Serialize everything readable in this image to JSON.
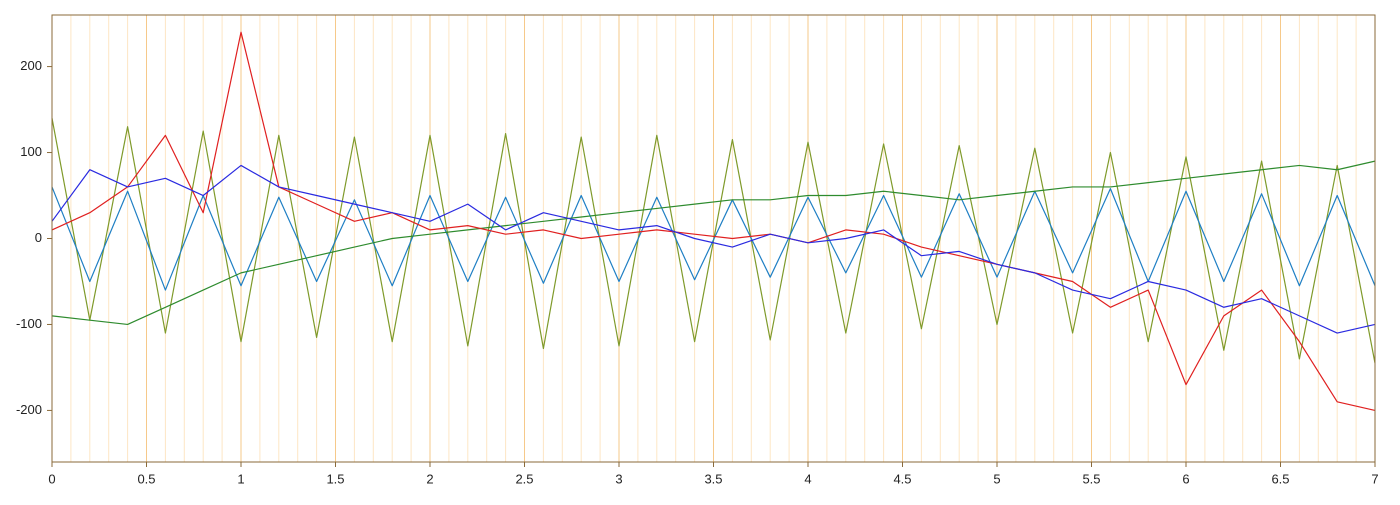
{
  "chart_data": {
    "type": "line",
    "x": [
      0,
      0.2,
      0.4,
      0.6,
      0.8,
      1,
      1.2,
      1.4,
      1.6,
      1.8,
      2,
      2.2,
      2.4,
      2.6,
      2.8,
      3,
      3.2,
      3.4,
      3.6,
      3.8,
      4,
      4.2,
      4.4,
      4.6,
      4.8,
      5,
      5.2,
      5.4,
      5.6,
      5.8,
      6,
      6.2,
      6.4,
      6.6,
      6.8,
      7
    ],
    "series": [
      {
        "color": "#7f9a2a",
        "values": [
          140,
          -95,
          130,
          -110,
          125,
          -120,
          120,
          -115,
          118,
          -120,
          120,
          -125,
          122,
          -128,
          118,
          -125,
          120,
          -120,
          115,
          -118,
          112,
          -110,
          110,
          -105,
          108,
          -100,
          105,
          -110,
          100,
          -120,
          95,
          -130,
          90,
          -140,
          85,
          -145
        ]
      },
      {
        "color": "#1f7fc4",
        "values": [
          60,
          -50,
          55,
          -60,
          50,
          -55,
          48,
          -50,
          45,
          -55,
          50,
          -50,
          48,
          -52,
          50,
          -50,
          48,
          -48,
          45,
          -45,
          48,
          -40,
          50,
          -45,
          52,
          -45,
          55,
          -40,
          58,
          -50,
          55,
          -50,
          52,
          -55,
          50,
          -55
        ]
      },
      {
        "color": "#2e8b2e",
        "values": [
          -90,
          -95,
          -100,
          -80,
          -60,
          -40,
          -30,
          -20,
          -10,
          0,
          5,
          10,
          15,
          20,
          25,
          30,
          35,
          40,
          45,
          45,
          50,
          50,
          55,
          50,
          45,
          50,
          55,
          60,
          60,
          65,
          70,
          75,
          80,
          85,
          80,
          90
        ]
      },
      {
        "color": "#e02020",
        "values": [
          10,
          30,
          60,
          120,
          30,
          240,
          60,
          40,
          20,
          30,
          10,
          15,
          5,
          10,
          0,
          5,
          10,
          5,
          0,
          5,
          -5,
          10,
          5,
          -10,
          -20,
          -30,
          -40,
          -50,
          -80,
          -60,
          -170,
          -90,
          -60,
          -120,
          -190,
          -200
        ]
      },
      {
        "color": "#2a2ae0",
        "values": [
          20,
          80,
          60,
          70,
          50,
          85,
          60,
          50,
          40,
          30,
          20,
          40,
          10,
          30,
          20,
          10,
          15,
          0,
          -10,
          5,
          -5,
          0,
          10,
          -20,
          -15,
          -30,
          -40,
          -60,
          -70,
          -50,
          -60,
          -80,
          -70,
          -90,
          -110,
          -100
        ]
      }
    ],
    "xlim": [
      0,
      7
    ],
    "ylim": [
      -260,
      260
    ],
    "xticks": [
      0,
      0.5,
      1,
      1.5,
      2,
      2.5,
      3,
      3.5,
      4,
      4.5,
      5,
      5.5,
      6,
      6.5,
      7
    ],
    "yticks": [
      -200,
      -100,
      0,
      100,
      200
    ],
    "x_minor_grid": [
      0.1,
      0.2,
      0.3,
      0.4,
      0.6,
      0.7,
      0.8,
      0.9,
      1.1,
      1.2,
      1.3,
      1.4,
      1.6,
      1.7,
      1.8,
      1.9,
      2.1,
      2.2,
      2.3,
      2.4,
      2.6,
      2.7,
      2.8,
      2.9,
      3.1,
      3.2,
      3.3,
      3.4,
      3.6,
      3.7,
      3.8,
      3.9,
      4.1,
      4.2,
      4.3,
      4.4,
      4.6,
      4.7,
      4.8,
      4.9,
      5.1,
      5.2,
      5.3,
      5.4,
      5.6,
      5.7,
      5.8,
      5.9,
      6.1,
      6.2,
      6.3,
      6.4,
      6.6,
      6.7,
      6.8,
      6.9
    ],
    "grid": true
  }
}
